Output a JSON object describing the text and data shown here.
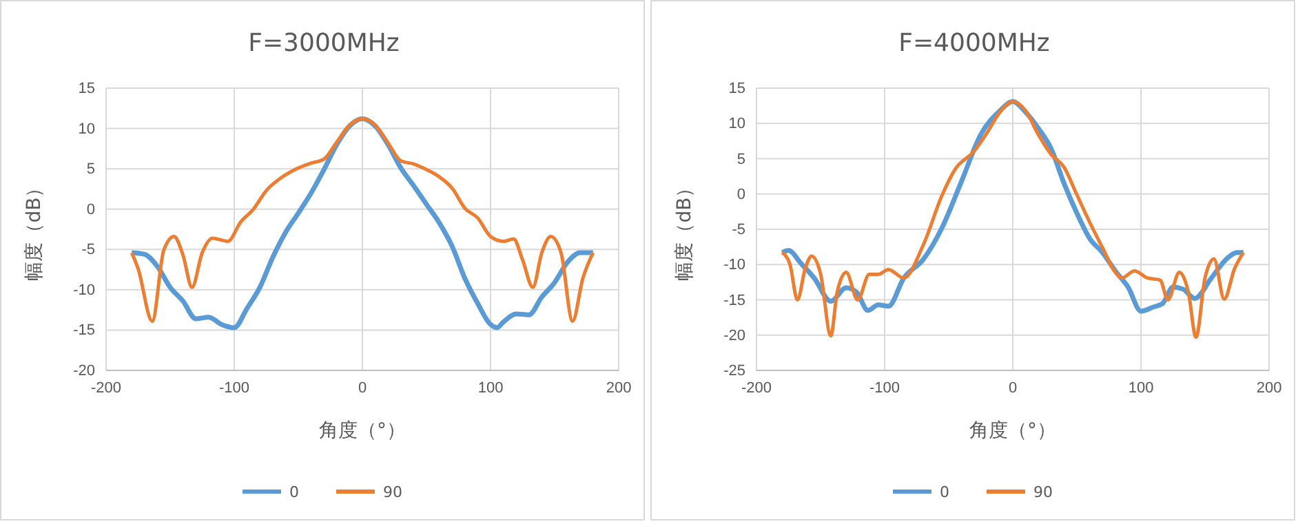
{
  "chart_data": [
    {
      "type": "line",
      "title": "F=3000MHz",
      "xlabel": "角度（°）",
      "ylabel": "幅度（dB）",
      "xlim": [
        -200,
        200
      ],
      "xticks": [
        -200,
        -100,
        0,
        100,
        200
      ],
      "ylim": [
        -20,
        15
      ],
      "yticks": [
        -20,
        -15,
        -10,
        -5,
        0,
        5,
        10,
        15
      ],
      "grid": true,
      "legend": "bottom",
      "marker": "none",
      "line_style": "solid",
      "series": [
        {
          "name": "0",
          "color": "#5b9bd5",
          "x": [
            -180,
            -170,
            -160,
            -150,
            -140,
            -130,
            -120,
            -110,
            -100,
            -90,
            -80,
            -70,
            -60,
            -50,
            -40,
            -30,
            -20,
            -10,
            0,
            10,
            20,
            30,
            40,
            50,
            60,
            70,
            80,
            90,
            100,
            105,
            110,
            120,
            130,
            140,
            150,
            160,
            170,
            180
          ],
          "values": [
            -5.4,
            -5.6,
            -7.1,
            -9.7,
            -11.4,
            -13.6,
            -13.4,
            -14.3,
            -14.7,
            -12.3,
            -9.7,
            -6,
            -2.9,
            -0.5,
            2,
            4.9,
            8,
            10.3,
            11.2,
            10.3,
            8,
            5.1,
            2.9,
            0.6,
            -1.7,
            -4.6,
            -8.6,
            -11.7,
            -14.3,
            -14.7,
            -14,
            -13,
            -13.1,
            -10.9,
            -9.1,
            -6.6,
            -5.4,
            -5.4
          ]
        },
        {
          "name": "90",
          "color": "#ed7d31",
          "x": [
            -180,
            -175,
            -164,
            -155,
            -147,
            -140,
            -133,
            -125,
            -117,
            -105,
            -95,
            -85,
            -75,
            -65,
            -50,
            -40,
            -30,
            -20,
            -10,
            0,
            10,
            20,
            30,
            40,
            50,
            60,
            70,
            80,
            90,
            100,
            110,
            118,
            125,
            133,
            140,
            147,
            155,
            164,
            172,
            180
          ],
          "values": [
            -5.4,
            -7.4,
            -13.9,
            -5.1,
            -3.4,
            -5.7,
            -9.7,
            -5.4,
            -3.6,
            -4,
            -1.6,
            0,
            2.3,
            3.7,
            5.1,
            5.7,
            6.2,
            8.3,
            10.4,
            11.2,
            10.4,
            8.2,
            6,
            5.6,
            4.9,
            4,
            2.6,
            0.1,
            -1.1,
            -3.4,
            -4,
            -3.7,
            -6.3,
            -9.7,
            -5.4,
            -3.4,
            -5.4,
            -13.9,
            -8.6,
            -5.4
          ]
        }
      ]
    },
    {
      "type": "line",
      "title": "F=4000MHz",
      "xlabel": "角度（°）",
      "ylabel": "幅度（dB）",
      "xlim": [
        -200,
        200
      ],
      "xticks": [
        -200,
        -100,
        0,
        100,
        200
      ],
      "ylim": [
        -25,
        15
      ],
      "yticks": [
        -25,
        -20,
        -15,
        -10,
        -5,
        0,
        5,
        10,
        15
      ],
      "grid": true,
      "legend": "bottom",
      "marker": "none",
      "line_style": "solid",
      "series": [
        {
          "name": "0",
          "color": "#5b9bd5",
          "x": [
            -180,
            -175,
            -165,
            -155,
            -142,
            -130,
            -122,
            -113,
            -105,
            -97,
            -85,
            -70,
            -55,
            -40,
            -25,
            -10,
            0,
            10,
            20,
            30,
            40,
            50,
            60,
            70,
            80,
            90,
            100,
            110,
            117,
            125,
            133,
            142,
            155,
            168,
            175,
            180
          ],
          "values": [
            -8.3,
            -8,
            -9.9,
            -11.9,
            -15.2,
            -13.3,
            -13.9,
            -16.5,
            -15.7,
            -15.9,
            -11.9,
            -9.3,
            -4.7,
            1.8,
            8.4,
            11.8,
            13.1,
            11.6,
            9.3,
            6.4,
            1.5,
            -2.7,
            -6.3,
            -8.3,
            -10.9,
            -13.2,
            -16.6,
            -16,
            -15.5,
            -13.2,
            -13.5,
            -14.8,
            -11.9,
            -9,
            -8.3,
            -8.3
          ]
        },
        {
          "name": "90",
          "color": "#ed7d31",
          "x": [
            -180,
            -174,
            -168,
            -162,
            -157,
            -150,
            -142,
            -137,
            -130,
            -121,
            -112,
            -105,
            -97,
            -85,
            -70,
            -55,
            -45,
            -30,
            -20,
            -10,
            0,
            10,
            20,
            30,
            40,
            50,
            60,
            70,
            80,
            85,
            95,
            105,
            115,
            121,
            130,
            137,
            143,
            150,
            157,
            165,
            173,
            180
          ],
          "values": [
            -8.3,
            -9.9,
            -15,
            -10.6,
            -8.8,
            -11.3,
            -20.1,
            -13.9,
            -11.1,
            -15,
            -11.4,
            -11.4,
            -10.7,
            -11.9,
            -7.3,
            -0.1,
            3.5,
            6.1,
            8.7,
            11.6,
            13.1,
            11.8,
            8.4,
            5.6,
            3.8,
            -0.1,
            -4,
            -7.6,
            -11.1,
            -11.9,
            -10.9,
            -11.9,
            -12.2,
            -15,
            -11.1,
            -13.9,
            -20.3,
            -11.9,
            -9.2,
            -14.9,
            -10.6,
            -8.3
          ]
        }
      ]
    }
  ]
}
